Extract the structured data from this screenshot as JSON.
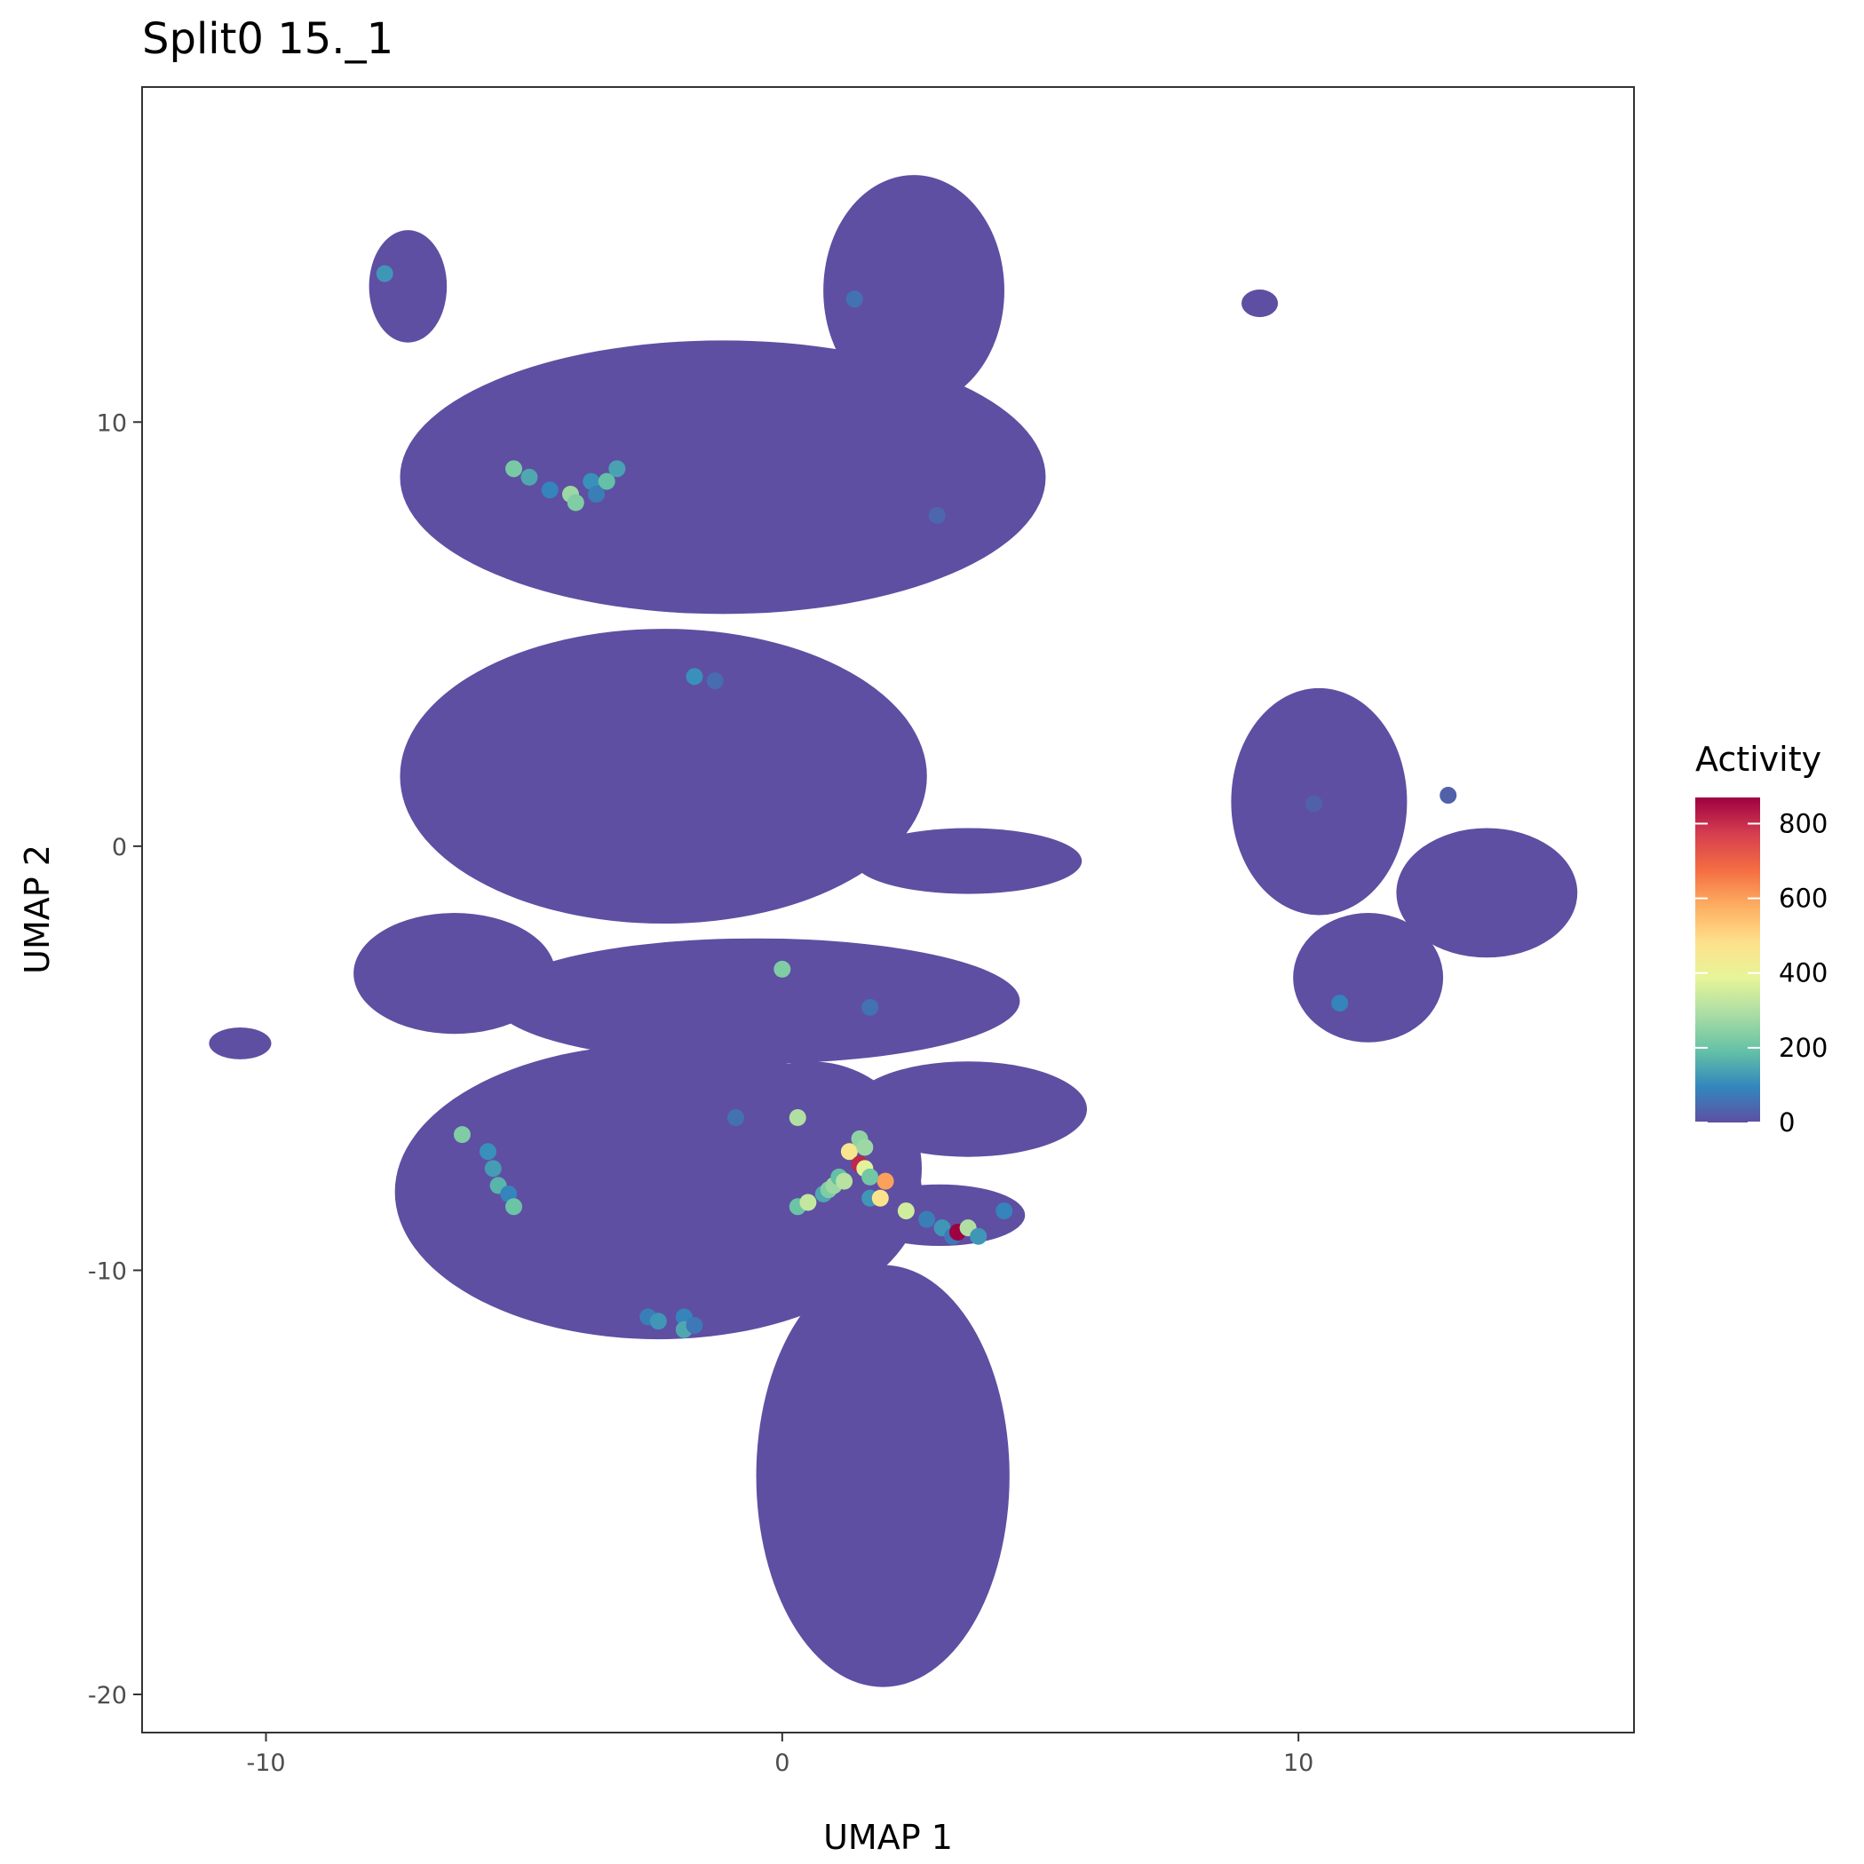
{
  "chart_data": {
    "type": "scatter",
    "title": "Split0 15._1",
    "xlabel": "UMAP 1",
    "ylabel": "UMAP 2",
    "xlim": [
      -12.4,
      16.5
    ],
    "ylim": [
      -20.9,
      17.9
    ],
    "x_ticks": [
      -10,
      0,
      10
    ],
    "y_ticks": [
      -20,
      -10,
      0,
      10
    ],
    "x_tick_labels": [
      "-10",
      "0",
      "10"
    ],
    "y_tick_labels": [
      "-20",
      "-10",
      "0",
      "10"
    ],
    "grid": false,
    "background_color": "#5e4fa2",
    "legend": {
      "title": "Activity",
      "position": "right",
      "type": "colorbar",
      "range": [
        0,
        870
      ],
      "ticks": [
        0,
        200,
        400,
        600,
        800
      ],
      "tick_labels": [
        "0",
        "200",
        "400",
        "600",
        "800"
      ],
      "palette": [
        "#5e4fa2",
        "#3288bd",
        "#66c2a5",
        "#abdda4",
        "#e6f598",
        "#fee08b",
        "#fdae61",
        "#f46d43",
        "#d53e4f",
        "#9e0142"
      ]
    },
    "clusters": [
      {
        "x": [
          -7.9,
          -6.6
        ],
        "y": [
          12.0,
          14.4
        ],
        "shape": "blob"
      },
      {
        "x": [
          -7.3,
          5.0
        ],
        "y": [
          5.6,
          11.8
        ],
        "shape": "blob"
      },
      {
        "x": [
          0.9,
          4.2
        ],
        "y": [
          10.5,
          15.7
        ],
        "shape": "blob"
      },
      {
        "x": [
          -7.3,
          2.7
        ],
        "y": [
          -1.7,
          5.0
        ],
        "shape": "blob"
      },
      {
        "x": [
          1.5,
          5.7
        ],
        "y": [
          -1.0,
          0.3
        ],
        "shape": "blob"
      },
      {
        "x": [
          -8.2,
          -4.5
        ],
        "y": [
          -4.3,
          -1.7
        ],
        "shape": "blob"
      },
      {
        "x": [
          -5.5,
          4.5
        ],
        "y": [
          -5.0,
          -2.3
        ],
        "shape": "blob"
      },
      {
        "x": [
          -7.4,
          2.6
        ],
        "y": [
          -11.5,
          -4.8
        ],
        "shape": "blob"
      },
      {
        "x": [
          -1.5,
          2.6
        ],
        "y": [
          -10.0,
          -5.2
        ],
        "shape": "blob"
      },
      {
        "x": [
          1.4,
          5.8
        ],
        "y": [
          -7.2,
          -5.2
        ],
        "shape": "blob"
      },
      {
        "x": [
          1.5,
          4.6
        ],
        "y": [
          -9.3,
          -8.1
        ],
        "shape": "blob"
      },
      {
        "x": [
          -0.4,
          4.3
        ],
        "y": [
          -19.7,
          -10.0
        ],
        "shape": "blob"
      },
      {
        "x": [
          -11.0,
          -10.0
        ],
        "y": [
          -4.9,
          -4.4
        ],
        "shape": "blob"
      },
      {
        "x": [
          9.0,
          9.5
        ],
        "y": [
          12.6,
          13.0
        ],
        "shape": "blob"
      },
      {
        "x": [
          8.8,
          12.0
        ],
        "y": [
          -1.5,
          3.6
        ],
        "shape": "blob"
      },
      {
        "x": [
          12.0,
          15.3
        ],
        "y": [
          -2.5,
          0.3
        ],
        "shape": "blob"
      },
      {
        "x": [
          10.0,
          12.7
        ],
        "y": [
          -4.5,
          -1.7
        ],
        "shape": "blob"
      }
    ],
    "points": [
      {
        "x": -7.7,
        "y": 13.5,
        "v": 120
      },
      {
        "x": -5.2,
        "y": 8.9,
        "v": 220
      },
      {
        "x": -4.9,
        "y": 8.7,
        "v": 150
      },
      {
        "x": -4.5,
        "y": 8.4,
        "v": 90
      },
      {
        "x": -4.1,
        "y": 8.3,
        "v": 270
      },
      {
        "x": -4.0,
        "y": 8.1,
        "v": 230
      },
      {
        "x": -3.7,
        "y": 8.6,
        "v": 110
      },
      {
        "x": -3.4,
        "y": 8.6,
        "v": 190
      },
      {
        "x": -3.2,
        "y": 8.9,
        "v": 140
      },
      {
        "x": -3.6,
        "y": 8.3,
        "v": 80
      },
      {
        "x": 1.4,
        "y": 12.9,
        "v": 60
      },
      {
        "x": 3.0,
        "y": 7.8,
        "v": 40
      },
      {
        "x": -1.7,
        "y": 4.0,
        "v": 110
      },
      {
        "x": -1.3,
        "y": 3.9,
        "v": 50
      },
      {
        "x": 0.0,
        "y": -2.9,
        "v": 230
      },
      {
        "x": 1.7,
        "y": -3.8,
        "v": 60
      },
      {
        "x": -6.2,
        "y": -6.8,
        "v": 230
      },
      {
        "x": -5.7,
        "y": -7.2,
        "v": 110
      },
      {
        "x": -5.6,
        "y": -7.6,
        "v": 130
      },
      {
        "x": -5.5,
        "y": -8.0,
        "v": 170
      },
      {
        "x": -5.3,
        "y": -8.2,
        "v": 90
      },
      {
        "x": -5.2,
        "y": -8.5,
        "v": 200
      },
      {
        "x": -2.6,
        "y": -11.1,
        "v": 80
      },
      {
        "x": -2.4,
        "y": -11.2,
        "v": 120
      },
      {
        "x": -1.9,
        "y": -11.1,
        "v": 90
      },
      {
        "x": -1.9,
        "y": -11.4,
        "v": 150
      },
      {
        "x": -1.7,
        "y": -11.3,
        "v": 70
      },
      {
        "x": -0.9,
        "y": -6.4,
        "v": 60
      },
      {
        "x": 0.3,
        "y": -6.4,
        "v": 300
      },
      {
        "x": 0.3,
        "y": -8.5,
        "v": 200
      },
      {
        "x": 0.5,
        "y": -8.4,
        "v": 330
      },
      {
        "x": 0.8,
        "y": -8.2,
        "v": 150
      },
      {
        "x": 0.9,
        "y": -8.1,
        "v": 230
      },
      {
        "x": 1.0,
        "y": -8.0,
        "v": 270
      },
      {
        "x": 1.1,
        "y": -7.8,
        "v": 190
      },
      {
        "x": 1.2,
        "y": -7.9,
        "v": 310
      },
      {
        "x": 1.3,
        "y": -7.2,
        "v": 450
      },
      {
        "x": 1.5,
        "y": -6.9,
        "v": 250
      },
      {
        "x": 1.5,
        "y": -7.5,
        "v": 810
      },
      {
        "x": 1.6,
        "y": -7.6,
        "v": 380
      },
      {
        "x": 1.7,
        "y": -8.3,
        "v": 120
      },
      {
        "x": 1.9,
        "y": -8.3,
        "v": 470
      },
      {
        "x": 2.0,
        "y": -7.9,
        "v": 600
      },
      {
        "x": 1.6,
        "y": -7.1,
        "v": 270
      },
      {
        "x": 1.7,
        "y": -7.8,
        "v": 210
      },
      {
        "x": 2.4,
        "y": -8.6,
        "v": 350
      },
      {
        "x": 2.8,
        "y": -8.8,
        "v": 80
      },
      {
        "x": 3.1,
        "y": -9.0,
        "v": 120
      },
      {
        "x": 3.3,
        "y": -9.2,
        "v": 70
      },
      {
        "x": 3.4,
        "y": -9.1,
        "v": 870
      },
      {
        "x": 3.6,
        "y": -9.0,
        "v": 300
      },
      {
        "x": 3.8,
        "y": -9.2,
        "v": 120
      },
      {
        "x": 4.3,
        "y": -8.6,
        "v": 90
      },
      {
        "x": 10.8,
        "y": -3.7,
        "v": 90
      },
      {
        "x": 10.3,
        "y": 1.0,
        "v": 30
      },
      {
        "x": 12.9,
        "y": 1.2,
        "v": 30
      }
    ]
  }
}
